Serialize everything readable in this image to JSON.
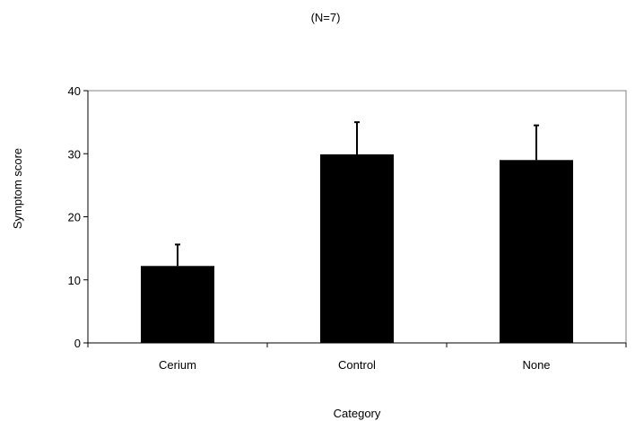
{
  "chart_data": {
    "type": "bar",
    "title": "(N=7)",
    "xlabel": "Category",
    "ylabel": "Symptom score",
    "categories": [
      "Cerium",
      "Control",
      "None"
    ],
    "values": [
      12.2,
      29.9,
      29.0
    ],
    "error": [
      3.4,
      5.1,
      5.5
    ],
    "ylim": [
      0,
      40
    ],
    "yticks": [
      "0",
      "10",
      "20",
      "30",
      "40"
    ],
    "grid": false,
    "legend": "none",
    "bar_color": "#000000"
  }
}
